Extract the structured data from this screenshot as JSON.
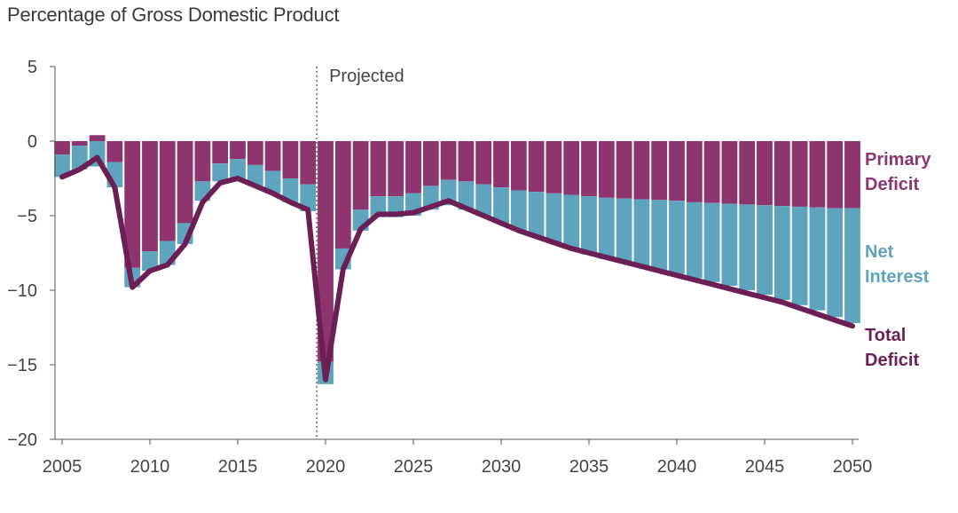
{
  "chart_data": {
    "type": "bar",
    "title": "",
    "subtitle": "Percentage of Gross Domestic Product",
    "xlabel": "",
    "ylabel": "",
    "ylim": [
      -20,
      5
    ],
    "xlim": [
      2005,
      2050
    ],
    "y_ticks": [
      "5",
      "0",
      "−5",
      "−10",
      "−15",
      "−20"
    ],
    "y_tick_values": [
      5,
      0,
      -5,
      -10,
      -15,
      -20
    ],
    "x_ticks": [
      "2005",
      "2010",
      "2015",
      "2020",
      "2025",
      "2030",
      "2035",
      "2040",
      "2045",
      "2050"
    ],
    "x_tick_values": [
      2005,
      2010,
      2015,
      2020,
      2025,
      2030,
      2035,
      2040,
      2045,
      2050
    ],
    "annotation": {
      "text": "Projected",
      "x": 2019.5
    },
    "years": [
      2005,
      2006,
      2007,
      2008,
      2009,
      2010,
      2011,
      2012,
      2013,
      2014,
      2015,
      2016,
      2017,
      2018,
      2019,
      2020,
      2021,
      2022,
      2023,
      2024,
      2025,
      2026,
      2027,
      2028,
      2029,
      2030,
      2031,
      2032,
      2033,
      2034,
      2035,
      2036,
      2037,
      2038,
      2039,
      2040,
      2041,
      2042,
      2043,
      2044,
      2045,
      2046,
      2047,
      2048,
      2049,
      2050
    ],
    "series": [
      {
        "name": "Primary Deficit",
        "label_lines": [
          "Primary",
          "Deficit"
        ],
        "color": "#8e3570",
        "values": [
          -0.9,
          -0.3,
          0.4,
          -1.4,
          -8.5,
          -7.4,
          -6.7,
          -5.5,
          -2.7,
          -1.5,
          -1.2,
          -1.6,
          -2.0,
          -2.5,
          -2.9,
          -14.8,
          -7.2,
          -4.6,
          -3.7,
          -3.7,
          -3.5,
          -3.0,
          -2.6,
          -2.7,
          -2.9,
          -3.1,
          -3.3,
          -3.4,
          -3.5,
          -3.6,
          -3.7,
          -3.8,
          -3.85,
          -3.9,
          -3.95,
          -4.0,
          -4.1,
          -4.15,
          -4.2,
          -4.25,
          -4.3,
          -4.35,
          -4.4,
          -4.45,
          -4.5,
          -4.5
        ]
      },
      {
        "name": "Net Interest",
        "label_lines": [
          "Net",
          "Interest"
        ],
        "color": "#5ea4bf",
        "values": [
          -1.5,
          -1.6,
          -1.7,
          -1.7,
          -1.3,
          -1.3,
          -1.6,
          -1.4,
          -1.3,
          -1.2,
          -1.3,
          -1.4,
          -1.5,
          -1.6,
          -1.8,
          -1.5,
          -1.4,
          -1.4,
          -1.4,
          -1.4,
          -1.5,
          -1.6,
          -1.7,
          -1.9,
          -2.1,
          -2.4,
          -2.7,
          -3.0,
          -3.3,
          -3.6,
          -3.9,
          -4.1,
          -4.3,
          -4.5,
          -4.7,
          -4.9,
          -5.1,
          -5.3,
          -5.5,
          -5.75,
          -6.0,
          -6.3,
          -6.6,
          -6.9,
          -7.3,
          -7.7
        ]
      },
      {
        "name": "Total Deficit",
        "label_lines": [
          "Total",
          "Deficit"
        ],
        "color": "#6b1f55",
        "type": "line",
        "values": [
          -2.4,
          -1.9,
          -1.1,
          -3.1,
          -9.8,
          -8.7,
          -8.3,
          -6.9,
          -4.1,
          -2.8,
          -2.5,
          -3.0,
          -3.5,
          -4.1,
          -4.6,
          -16.0,
          -8.6,
          -5.9,
          -4.9,
          -4.9,
          -4.8,
          -4.4,
          -4.0,
          -4.5,
          -5.0,
          -5.5,
          -6.0,
          -6.4,
          -6.8,
          -7.2,
          -7.5,
          -7.8,
          -8.1,
          -8.4,
          -8.7,
          -9.0,
          -9.3,
          -9.6,
          -9.9,
          -10.2,
          -10.5,
          -10.8,
          -11.2,
          -11.6,
          -12.0,
          -12.4
        ]
      }
    ],
    "legend_placement": "right",
    "grid": false
  }
}
